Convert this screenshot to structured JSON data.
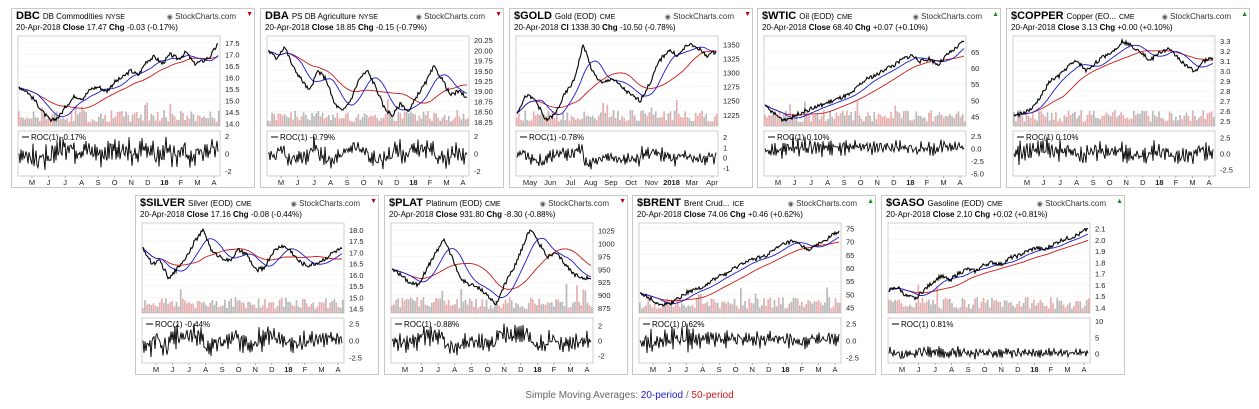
{
  "footer": {
    "label": "Simple Moving Averages:",
    "p20": "20-period",
    "sep": "/",
    "p50": "50-period"
  },
  "colors": {
    "sma20": "#1a1acc",
    "sma50": "#cc1a1a",
    "price": "#000000",
    "up": "#1a8c1a",
    "down": "#c0001a",
    "vol_up": "#a8a8a8",
    "vol_down": "#e09a9a"
  },
  "source_label": "StockCharts.com",
  "panels": [
    {
      "symbol": "DBC",
      "name": "DB Commodities",
      "exchange": "NYSE",
      "date": "20-Apr-2018",
      "close_label": "Close",
      "close": "17.47",
      "chg_label": "Chg",
      "chg": "-0.03 (-0.17%)",
      "direction": "down",
      "roc_label": "ROC(1) -0.17%",
      "months": [
        "M",
        "J",
        "J",
        "A",
        "S",
        "O",
        "N",
        "D",
        "18",
        "F",
        "M",
        "A"
      ]
    },
    {
      "symbol": "DBA",
      "name": "PS DB Agriculture",
      "exchange": "NYSE",
      "date": "20-Apr-2018",
      "close_label": "Close",
      "close": "18.85",
      "chg_label": "Chg",
      "chg": "-0.15 (-0.79%)",
      "direction": "down",
      "roc_label": "ROC(1) -0.79%",
      "months": [
        "M",
        "J",
        "J",
        "A",
        "S",
        "O",
        "N",
        "D",
        "18",
        "F",
        "M",
        "A"
      ]
    },
    {
      "symbol": "$GOLD",
      "name": "Gold (EOD)",
      "exchange": "CME",
      "date": "20-Apr-2018",
      "close_label": "Cl",
      "close": "1338.30",
      "chg_label": "Chg",
      "chg": "-10.50 (-0.78%)",
      "direction": "down",
      "roc_label": "ROC(1) -0.78%",
      "months": [
        "May",
        "Jun",
        "Jul",
        "Aug",
        "Sep",
        "Oct",
        "Nov",
        "2018",
        "Mar",
        "Apr"
      ]
    },
    {
      "symbol": "$WTIC",
      "name": "Oil (EOD)",
      "exchange": "CME",
      "date": "20-Apr-2018",
      "close_label": "Close",
      "close": "68.40",
      "chg_label": "Chg",
      "chg": "+0.07 (+0.10%)",
      "direction": "up",
      "roc_label": "ROC(1) 0.10%",
      "months": [
        "M",
        "J",
        "J",
        "A",
        "S",
        "O",
        "N",
        "D",
        "18",
        "F",
        "M",
        "A"
      ]
    },
    {
      "symbol": "$COPPER",
      "name": "Copper (EO...",
      "exchange": "CME",
      "date": "20-Apr-2018",
      "close_label": "Close",
      "close": "3.13",
      "chg_label": "Chg",
      "chg": "+0.00 (+0.10%)",
      "direction": "up",
      "roc_label": "ROC(1) 0.10%",
      "months": [
        "M",
        "J",
        "J",
        "A",
        "S",
        "O",
        "N",
        "D",
        "18",
        "F",
        "M",
        "A"
      ]
    },
    {
      "symbol": "$SILVER",
      "name": "Silver (EOD)",
      "exchange": "CME",
      "date": "20-Apr-2018",
      "close_label": "Close",
      "close": "17.16",
      "chg_label": "Chg",
      "chg": "-0.08 (-0.44%)",
      "direction": "down",
      "roc_label": "ROC(1) -0.44%",
      "months": [
        "M",
        "J",
        "J",
        "A",
        "S",
        "O",
        "N",
        "D",
        "18",
        "F",
        "M",
        "A"
      ]
    },
    {
      "symbol": "$PLAT",
      "name": "Platinum (EOD)",
      "exchange": "CME",
      "date": "20-Apr-2018",
      "close_label": "Close",
      "close": "931.80",
      "chg_label": "Chg",
      "chg": "-8.30 (-0.88%)",
      "direction": "down",
      "roc_label": "ROC(1) -0.88%",
      "months": [
        "M",
        "J",
        "J",
        "A",
        "S",
        "O",
        "N",
        "D",
        "18",
        "F",
        "M",
        "A"
      ]
    },
    {
      "symbol": "$BRENT",
      "name": "Brent Crud...",
      "exchange": "ICE",
      "date": "20-Apr-2018",
      "close_label": "Close",
      "close": "74.06",
      "chg_label": "Chg",
      "chg": "+0.46 (+0.62%)",
      "direction": "up",
      "roc_label": "ROC(1) 0.62%",
      "months": [
        "M",
        "J",
        "J",
        "A",
        "S",
        "O",
        "N",
        "D",
        "18",
        "F",
        "M",
        "A"
      ]
    },
    {
      "symbol": "$GASO",
      "name": "Gasoline (EOD)",
      "exchange": "CME",
      "date": "20-Apr-2018",
      "close_label": "Close",
      "close": "2.10",
      "chg_label": "Chg",
      "chg": "+0.02 (+0.81%)",
      "direction": "up",
      "roc_label": "ROC(1) 0.81%",
      "months": [
        "M",
        "J",
        "J",
        "A",
        "S",
        "O",
        "N",
        "D",
        "18",
        "F",
        "M",
        "A"
      ]
    }
  ],
  "chart_data": [
    {
      "type": "line",
      "title": "DBC DB Commodities",
      "y_ticks": [
        "17.5",
        "17.0",
        "16.5",
        "16.0",
        "15.5",
        "15.0",
        "14.5",
        "14.0"
      ],
      "ylim": [
        13.9,
        17.8
      ],
      "price_path": [
        15.6,
        15.4,
        15.0,
        14.5,
        14.1,
        14.3,
        14.8,
        15.2,
        15.1,
        15.5,
        15.6,
        15.4,
        15.8,
        16.0,
        16.3,
        16.1,
        16.7,
        16.9,
        16.6,
        17.0,
        16.8,
        17.1,
        16.6,
        16.7,
        16.9,
        17.47
      ],
      "roc_ticks": [
        "2",
        "0",
        "-2"
      ],
      "roc_range": [
        -2.6,
        2.6
      ]
    },
    {
      "type": "line",
      "title": "DBA PS DB Agriculture",
      "y_ticks": [
        "20.25",
        "20.00",
        "19.75",
        "19.50",
        "19.25",
        "19.00",
        "18.75",
        "18.50",
        "18.25"
      ],
      "ylim": [
        18.15,
        20.35
      ],
      "price_path": [
        20.0,
        19.8,
        20.1,
        19.6,
        19.3,
        19.0,
        19.5,
        19.3,
        18.7,
        18.5,
        18.8,
        19.3,
        19.5,
        19.1,
        18.6,
        18.4,
        18.7,
        18.5,
        18.9,
        19.2,
        19.6,
        19.3,
        18.9,
        19.0,
        18.85
      ],
      "roc_ticks": [
        "2",
        "0",
        "-2"
      ],
      "roc_range": [
        -2.6,
        2.6
      ]
    },
    {
      "type": "line",
      "title": "$GOLD Gold (EOD)",
      "y_ticks": [
        "1350",
        "1325",
        "1300",
        "1275",
        "1250",
        "1225"
      ],
      "ylim": [
        1205,
        1365
      ],
      "price_path": [
        1230,
        1260,
        1250,
        1215,
        1225,
        1260,
        1285,
        1350,
        1300,
        1280,
        1290,
        1275,
        1260,
        1250,
        1280,
        1320,
        1340,
        1330,
        1350,
        1345,
        1330,
        1338
      ],
      "roc_ticks": [
        "2",
        "1",
        "0",
        "-1"
      ],
      "roc_range": [
        -1.8,
        2.6
      ]
    },
    {
      "type": "line",
      "title": "$WTIC Oil (EOD)",
      "y_ticks": [
        "65",
        "60",
        "55",
        "50",
        "45"
      ],
      "ylim": [
        42,
        70
      ],
      "price_path": [
        48,
        46,
        44,
        44.5,
        46,
        47,
        48,
        49,
        50,
        51,
        52,
        55,
        57,
        58,
        60,
        61,
        63,
        64,
        62,
        63,
        61,
        64,
        66,
        68.4
      ],
      "roc_ticks": [
        "2.5",
        "0.0",
        "-2.5",
        "-5.0"
      ],
      "roc_range": [
        -5.5,
        3.5
      ]
    },
    {
      "type": "line",
      "title": "$COPPER Copper (EOD)",
      "y_ticks": [
        "3.3",
        "3.2",
        "3.1",
        "3.0",
        "2.9",
        "2.8",
        "2.7",
        "2.6",
        "2.5"
      ],
      "ylim": [
        2.45,
        3.35
      ],
      "price_path": [
        2.55,
        2.58,
        2.62,
        2.75,
        2.9,
        2.95,
        3.05,
        3.1,
        3.0,
        3.08,
        3.15,
        3.2,
        3.3,
        3.25,
        3.2,
        3.1,
        3.18,
        3.22,
        3.15,
        3.05,
        3.0,
        3.1,
        3.13
      ],
      "roc_ticks": [
        "2.5",
        "0.0",
        "-2.5"
      ],
      "roc_range": [
        -3.5,
        3.5
      ]
    },
    {
      "type": "line",
      "title": "$SILVER Silver (EOD)",
      "y_ticks": [
        "18.0",
        "17.5",
        "17.0",
        "16.5",
        "16.0",
        "15.5",
        "15.0",
        "14.5"
      ],
      "ylim": [
        14.3,
        18.3
      ],
      "price_path": [
        17.2,
        16.5,
        16.6,
        15.8,
        16.3,
        16.8,
        17.5,
        18.0,
        17.0,
        16.8,
        16.6,
        17.1,
        16.9,
        16.2,
        16.3,
        17.0,
        17.3,
        17.1,
        16.6,
        16.4,
        16.5,
        16.7,
        17.0,
        17.16
      ],
      "roc_ticks": [
        "2.5",
        "0.0",
        "-2.5"
      ],
      "roc_range": [
        -3.3,
        3.3
      ]
    },
    {
      "type": "line",
      "title": "$PLAT Platinum (EOD)",
      "y_ticks": [
        "1025",
        "1000",
        "975",
        "950",
        "925",
        "900",
        "875"
      ],
      "ylim": [
        865,
        1040
      ],
      "price_path": [
        950,
        940,
        925,
        920,
        950,
        980,
        1010,
        970,
        930,
        920,
        915,
        900,
        880,
        920,
        950,
        990,
        1030,
        1000,
        975,
        980,
        960,
        940,
        935,
        931.8
      ],
      "roc_ticks": [
        "2",
        "0",
        "-2"
      ],
      "roc_range": [
        -3.0,
        3.0
      ]
    },
    {
      "type": "line",
      "title": "$BRENT Brent Crude",
      "y_ticks": [
        "75",
        "70",
        "65",
        "60",
        "55",
        "50",
        "45"
      ],
      "ylim": [
        43,
        77
      ],
      "price_path": [
        51,
        49,
        47,
        46,
        47,
        49,
        51,
        52,
        53,
        55,
        57,
        58,
        60,
        62,
        63,
        64,
        65,
        67,
        69,
        70,
        69,
        67,
        68,
        70,
        72,
        74.06
      ],
      "roc_ticks": [
        "2.5",
        "0.0",
        "-2.5"
      ],
      "roc_range": [
        -3.3,
        3.3
      ]
    },
    {
      "type": "line",
      "title": "$GASO Gasoline (EOD)",
      "y_ticks": [
        "2.1",
        "2.0",
        "1.9",
        "1.8",
        "1.7",
        "1.6",
        "1.5",
        "1.4"
      ],
      "ylim": [
        1.35,
        2.15
      ],
      "price_path": [
        1.55,
        1.58,
        1.5,
        1.48,
        1.55,
        1.62,
        1.68,
        1.64,
        1.7,
        1.74,
        1.72,
        1.78,
        1.8,
        1.78,
        1.84,
        1.86,
        1.9,
        1.93,
        1.91,
        1.96,
        2.0,
        2.02,
        2.05,
        2.1
      ],
      "roc_ticks": [
        "10",
        "5",
        "0"
      ],
      "roc_range": [
        -3.0,
        11.0
      ]
    }
  ]
}
